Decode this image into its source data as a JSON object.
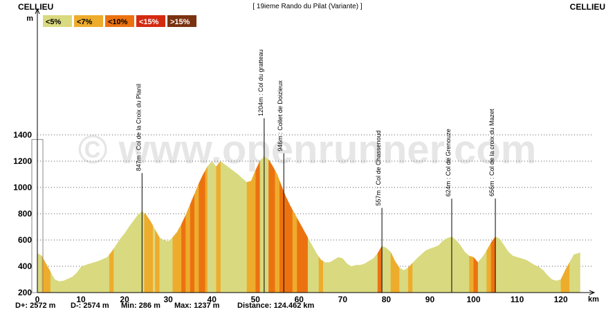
{
  "header": {
    "start_place": "CELLIEU",
    "end_place": "CELLIEU",
    "title": "[ 19ieme Rando du Pilat (Variante) ]"
  },
  "watermark": "© www.openrunner.com",
  "legend": [
    {
      "label": "<5%",
      "color": "#d9d97f"
    },
    {
      "label": "<7%",
      "color": "#eeac2c"
    },
    {
      "label": "<10%",
      "color": "#ec7210"
    },
    {
      "label": "<15%",
      "color": "#d42a10"
    },
    {
      "label": ">15%",
      "color": "#7a3210"
    }
  ],
  "stats": {
    "d_plus": "D+: 2572 m",
    "d_minus": "D-: 2574 m",
    "min": "Min: 286 m",
    "max": "Max: 1237 m",
    "distance": "Distance: 124.462 km"
  },
  "chart_data": {
    "type": "area",
    "title": "[ 19ieme Rando du Pilat (Variante) ]",
    "xlabel": "km",
    "ylabel": "m",
    "xlim": [
      0,
      124.5
    ],
    "ylim": [
      200,
      1400
    ],
    "x_ticks": [
      0,
      10,
      20,
      30,
      40,
      50,
      60,
      70,
      80,
      90,
      100,
      110,
      120
    ],
    "y_ticks": [
      200,
      400,
      600,
      800,
      1000,
      1200,
      1400
    ],
    "grid": "horizontal dotted",
    "profile": [
      [
        0,
        500
      ],
      [
        1,
        480
      ],
      [
        2,
        420
      ],
      [
        3,
        360
      ],
      [
        4,
        300
      ],
      [
        5,
        286
      ],
      [
        6,
        290
      ],
      [
        7,
        305
      ],
      [
        8,
        320
      ],
      [
        9,
        350
      ],
      [
        10,
        395
      ],
      [
        11,
        410
      ],
      [
        12,
        420
      ],
      [
        13,
        430
      ],
      [
        14,
        440
      ],
      [
        15,
        455
      ],
      [
        16,
        470
      ],
      [
        17,
        510
      ],
      [
        18,
        560
      ],
      [
        19,
        610
      ],
      [
        20,
        650
      ],
      [
        21,
        700
      ],
      [
        22,
        745
      ],
      [
        23,
        790
      ],
      [
        24,
        820
      ],
      [
        25,
        790
      ],
      [
        26,
        740
      ],
      [
        27,
        680
      ],
      [
        28,
        620
      ],
      [
        29,
        600
      ],
      [
        30,
        590
      ],
      [
        31,
        620
      ],
      [
        32,
        660
      ],
      [
        33,
        720
      ],
      [
        34,
        790
      ],
      [
        35,
        870
      ],
      [
        36,
        950
      ],
      [
        37,
        1030
      ],
      [
        38,
        1100
      ],
      [
        39,
        1160
      ],
      [
        40,
        1200
      ],
      [
        41,
        1160
      ],
      [
        42,
        1200
      ],
      [
        43,
        1175
      ],
      [
        44,
        1150
      ],
      [
        45,
        1125
      ],
      [
        46,
        1100
      ],
      [
        47,
        1070
      ],
      [
        48,
        1040
      ],
      [
        49,
        1050
      ],
      [
        50,
        1130
      ],
      [
        51,
        1200
      ],
      [
        52,
        1237
      ],
      [
        53,
        1215
      ],
      [
        54,
        1160
      ],
      [
        55,
        1100
      ],
      [
        56,
        1010
      ],
      [
        57,
        930
      ],
      [
        58,
        860
      ],
      [
        59,
        800
      ],
      [
        60,
        740
      ],
      [
        61,
        680
      ],
      [
        62,
        620
      ],
      [
        63,
        560
      ],
      [
        64,
        500
      ],
      [
        65,
        450
      ],
      [
        66,
        430
      ],
      [
        67,
        430
      ],
      [
        68,
        450
      ],
      [
        69,
        470
      ],
      [
        70,
        460
      ],
      [
        71,
        420
      ],
      [
        72,
        400
      ],
      [
        73,
        410
      ],
      [
        74,
        410
      ],
      [
        75,
        420
      ],
      [
        76,
        440
      ],
      [
        77,
        460
      ],
      [
        78,
        500
      ],
      [
        79,
        555
      ],
      [
        80,
        540
      ],
      [
        81,
        510
      ],
      [
        82,
        440
      ],
      [
        83,
        390
      ],
      [
        84,
        370
      ],
      [
        85,
        390
      ],
      [
        86,
        425
      ],
      [
        87,
        460
      ],
      [
        88,
        490
      ],
      [
        89,
        520
      ],
      [
        90,
        535
      ],
      [
        91,
        545
      ],
      [
        92,
        560
      ],
      [
        93,
        595
      ],
      [
        94,
        615
      ],
      [
        95,
        625
      ],
      [
        96,
        600
      ],
      [
        97,
        560
      ],
      [
        98,
        510
      ],
      [
        99,
        480
      ],
      [
        100,
        470
      ],
      [
        101,
        430
      ],
      [
        102,
        470
      ],
      [
        103,
        520
      ],
      [
        104,
        580
      ],
      [
        105,
        626
      ],
      [
        106,
        610
      ],
      [
        107,
        560
      ],
      [
        108,
        510
      ],
      [
        109,
        480
      ],
      [
        110,
        470
      ],
      [
        111,
        460
      ],
      [
        112,
        450
      ],
      [
        113,
        430
      ],
      [
        114,
        410
      ],
      [
        115,
        395
      ],
      [
        116,
        370
      ],
      [
        117,
        330
      ],
      [
        118,
        300
      ],
      [
        119,
        290
      ],
      [
        120,
        300
      ],
      [
        121,
        370
      ],
      [
        122,
        430
      ],
      [
        123,
        490
      ],
      [
        124,
        500
      ],
      [
        124.46,
        505
      ]
    ],
    "gradient_bands": [
      {
        "from": 1,
        "to": 3,
        "class": "<7%"
      },
      {
        "from": 16.5,
        "to": 17.5,
        "class": "<7%"
      },
      {
        "from": 24.5,
        "to": 26.5,
        "class": "<7%"
      },
      {
        "from": 27,
        "to": 28,
        "class": "<7%"
      },
      {
        "from": 31,
        "to": 33,
        "class": "<7%"
      },
      {
        "from": 33,
        "to": 34,
        "class": "<10%"
      },
      {
        "from": 34,
        "to": 35,
        "class": "<7%"
      },
      {
        "from": 35,
        "to": 36,
        "class": "<10%"
      },
      {
        "from": 36,
        "to": 37,
        "class": "<7%"
      },
      {
        "from": 37,
        "to": 38.5,
        "class": "<10%"
      },
      {
        "from": 38.5,
        "to": 39,
        "class": "<7%"
      },
      {
        "from": 41,
        "to": 42,
        "class": "<7%"
      },
      {
        "from": 48,
        "to": 50,
        "class": "<7%"
      },
      {
        "from": 50,
        "to": 51,
        "class": "<10%"
      },
      {
        "from": 53,
        "to": 54.5,
        "class": "<10%"
      },
      {
        "from": 54.5,
        "to": 55.5,
        "class": "<7%"
      },
      {
        "from": 55.5,
        "to": 58.5,
        "class": "<10%"
      },
      {
        "from": 58.5,
        "to": 59.5,
        "class": "<7%"
      },
      {
        "from": 59.5,
        "to": 62,
        "class": "<10%"
      },
      {
        "from": 64.5,
        "to": 65.5,
        "class": "<7%"
      },
      {
        "from": 78,
        "to": 79,
        "class": "<10%"
      },
      {
        "from": 81,
        "to": 83,
        "class": "<7%"
      },
      {
        "from": 85,
        "to": 86,
        "class": "<7%"
      },
      {
        "from": 99,
        "to": 100,
        "class": "<7%"
      },
      {
        "from": 100,
        "to": 101,
        "class": "<10%"
      },
      {
        "from": 103,
        "to": 104,
        "class": "<7%"
      },
      {
        "from": 104,
        "to": 105,
        "class": "<10%"
      },
      {
        "from": 120,
        "to": 122,
        "class": "<7%"
      }
    ],
    "passes": [
      {
        "km": 24,
        "label": "847m : Col de la Croix du Planil"
      },
      {
        "km": 52,
        "label": "1204m : Col du gratteau"
      },
      {
        "km": 56.5,
        "label": "946m : Collet de Doizieux"
      },
      {
        "km": 79,
        "label": "557m : Col de Chassenoud"
      },
      {
        "km": 95,
        "label": "624m : Col de Grenouze"
      },
      {
        "km": 105,
        "label": "656m : Col de la croix du Mazet"
      }
    ]
  }
}
